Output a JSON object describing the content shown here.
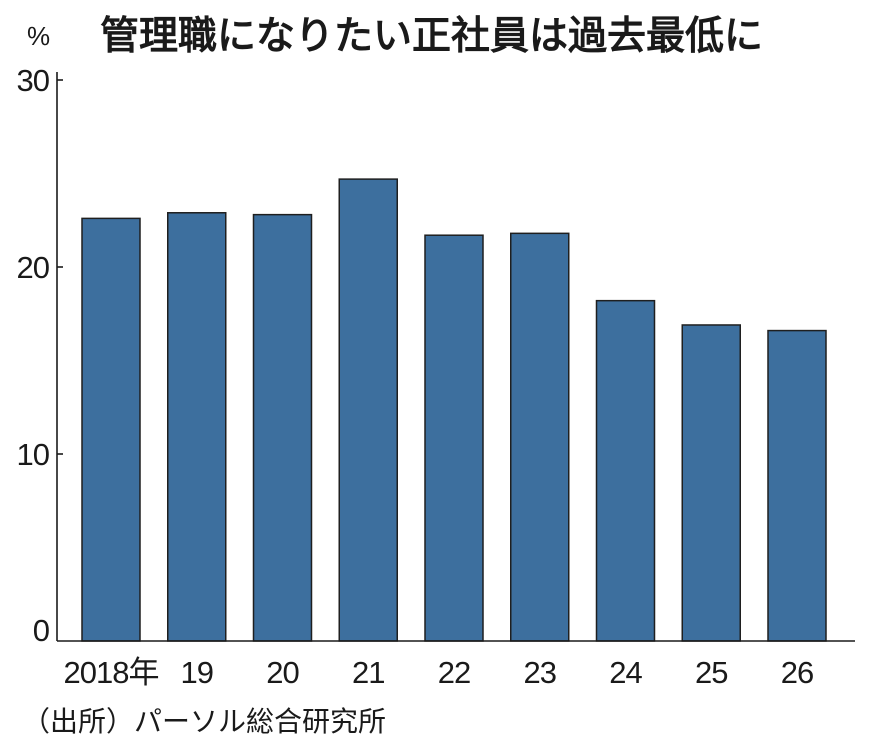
{
  "chart_data": {
    "type": "bar",
    "title": "管理職になりたい正社員は過去最低に",
    "ylabel": "%",
    "xlabel": "",
    "categories": [
      "2018年",
      "19",
      "20",
      "21",
      "22",
      "23",
      "24",
      "25",
      "26"
    ],
    "values": [
      22.6,
      22.9,
      22.8,
      24.7,
      21.7,
      21.8,
      18.2,
      16.9,
      16.6
    ],
    "ylim": [
      0,
      30
    ],
    "yticks": [
      0,
      10,
      20,
      30
    ],
    "grid": false,
    "bar_color": "#3d6f9e",
    "source": "（出所）パーソル総合研究所"
  }
}
